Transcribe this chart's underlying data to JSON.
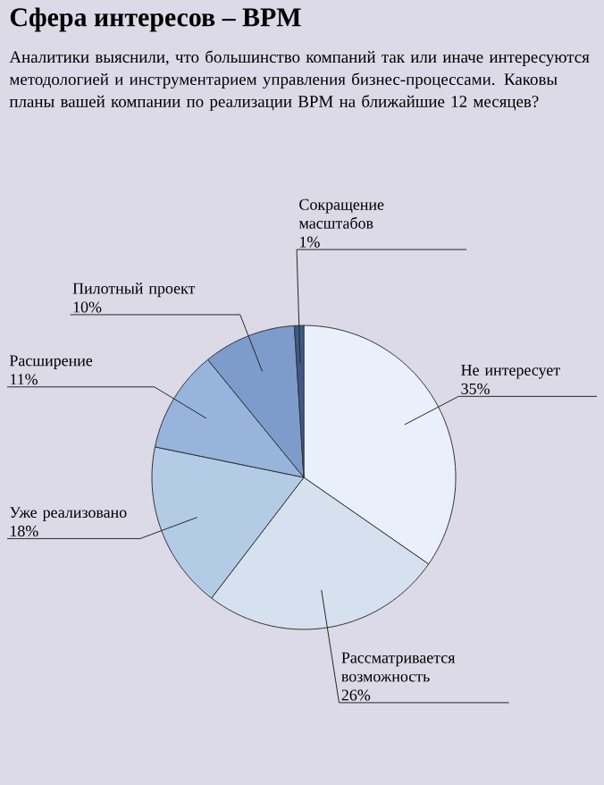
{
  "chart_data": {
    "type": "pie",
    "title": "Сфера интересов – BPM",
    "subtitle": "Аналитики выяснили, что большинство компаний так или иначе интересуются методологией и инструментарием управления бизнес-процессами. Каковы планы вашей компании по реализации BPM на ближайшие 12 месяцев?",
    "categories": [
      "Не интересует",
      "Рассматривается возможность",
      "Уже реализовано",
      "Расширение",
      "Пилотный проект",
      "Сокращение масштабов"
    ],
    "values": [
      35,
      26,
      18,
      11,
      10,
      1
    ],
    "value_labels": [
      "35%",
      "26%",
      "18%",
      "11%",
      "10%",
      "1%"
    ],
    "colors": [
      "#eaf0f9",
      "#d6e1ef",
      "#b4cbe6",
      "#96b4dc",
      "#7d9ccc",
      "#3e5a8c"
    ]
  }
}
